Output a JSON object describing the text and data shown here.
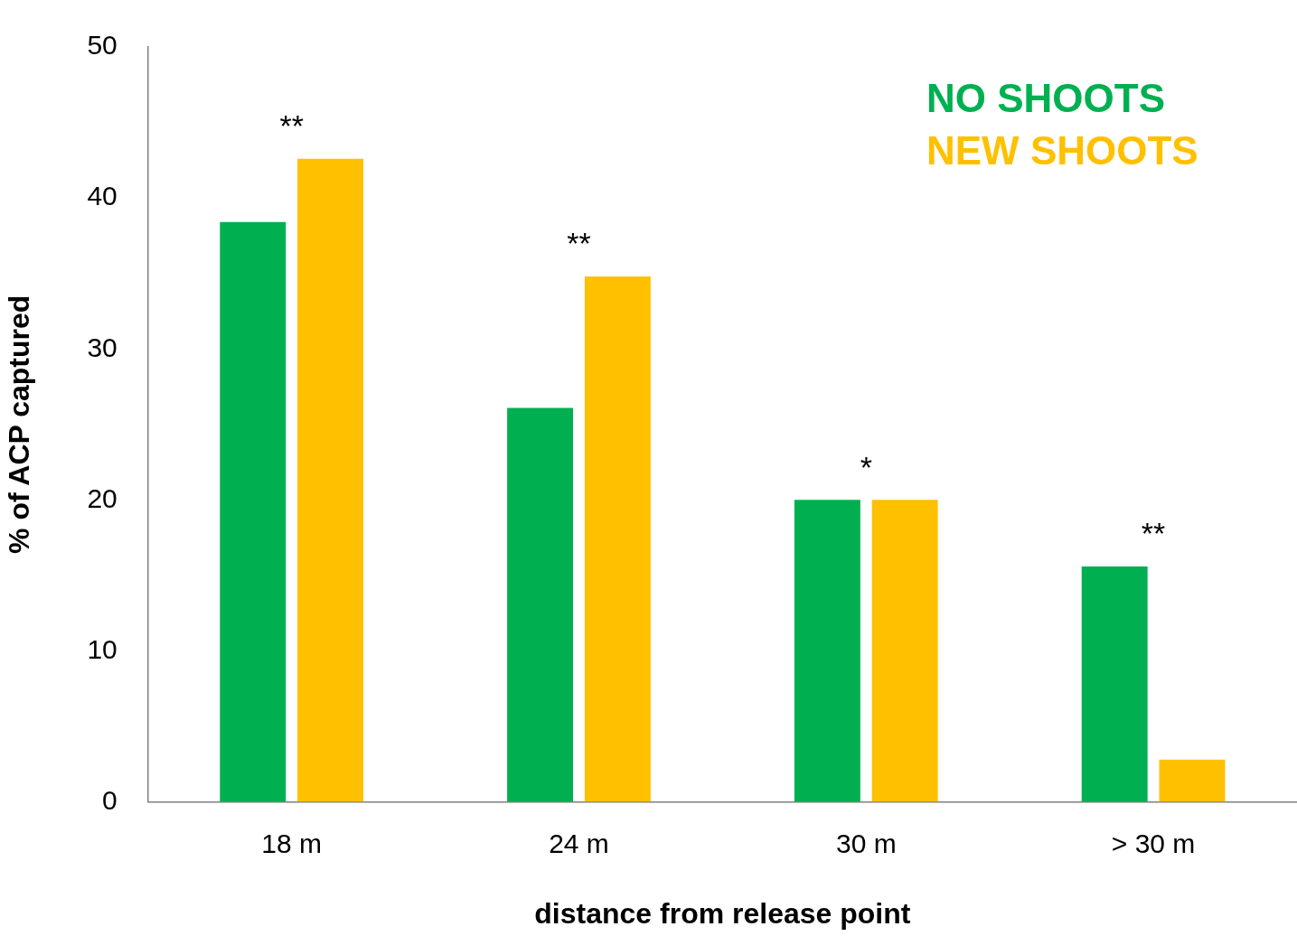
{
  "chart_data": {
    "type": "bar",
    "xlabel": "distance from release point",
    "ylabel": "% of ACP captured",
    "categories": [
      "18 m",
      "24 m",
      "30 m",
      "> 30 m"
    ],
    "series": [
      {
        "name": "NO SHOOTS",
        "color": "#00b050",
        "values": [
          38.4,
          26.1,
          20.0,
          15.6
        ]
      },
      {
        "name": "NEW SHOOTS",
        "color": "#ffc000",
        "values": [
          42.6,
          34.8,
          20.0,
          2.8
        ]
      }
    ],
    "ylim": [
      0,
      50
    ],
    "yticks": [
      0,
      10,
      20,
      30,
      40,
      50
    ],
    "grid": false,
    "legend": "top right",
    "annotations": [
      "**",
      "**",
      "*",
      "**"
    ]
  }
}
